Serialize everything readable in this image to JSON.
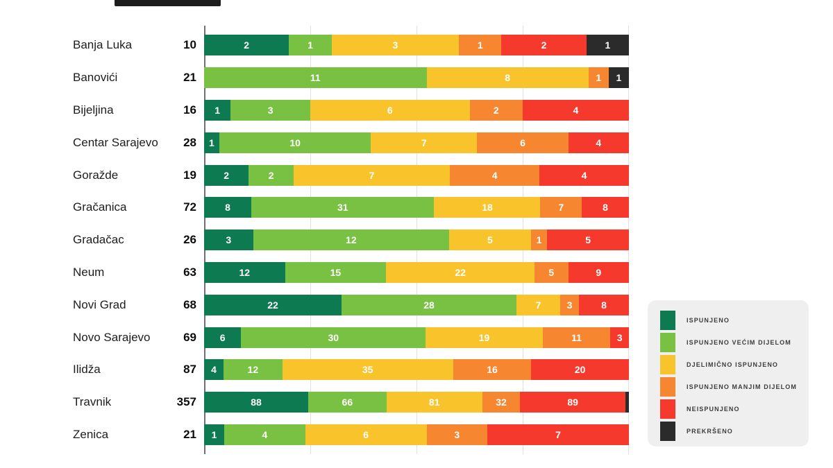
{
  "decor": {
    "top_strip_color": "#1d1d1d",
    "legend_background": "#efefef",
    "gridline_color": "#e0e0e0",
    "axis_line_color": "#707070"
  },
  "chart_data": {
    "type": "bar",
    "subtype": "horizontal-100%-stacked",
    "title": "",
    "xlabel": "",
    "ylabel": "",
    "legend_position": "right",
    "grid": true,
    "gridlines_percent": [
      0,
      25,
      50,
      75,
      100
    ],
    "series_labels": [
      "ISPUNJENO",
      "ISPUNJENO VEĆIM DIJELOM",
      "DJELIMIČNO ISPUNJENO",
      "ISPUNJENO MANJIM DIJELOM",
      "NEISPUNJENO",
      "PREKRŠENO"
    ],
    "series_keys": [
      "ispunjeno",
      "ispunjeno-vecim-dijelom",
      "djelimicno-ispunjeno",
      "ispunjeno-manjim-dijelom",
      "neispunjeno",
      "prekrseno"
    ],
    "series_colors": [
      "#0d7a52",
      "#79c142",
      "#f9c32b",
      "#f6862f",
      "#f53a2d",
      "#2b2b2b"
    ],
    "rows": [
      {
        "label": "Banja Luka",
        "total": 10,
        "values": [
          2,
          1,
          3,
          1,
          2,
          1
        ]
      },
      {
        "label": "Banovići",
        "total": 21,
        "values": [
          0,
          11,
          8,
          1,
          0,
          1
        ]
      },
      {
        "label": "Bijeljina",
        "total": 16,
        "values": [
          1,
          3,
          6,
          2,
          4,
          0
        ]
      },
      {
        "label": "Centar Sarajevo",
        "total": 28,
        "values": [
          1,
          10,
          7,
          6,
          4,
          0
        ]
      },
      {
        "label": "Goražde",
        "total": 19,
        "values": [
          2,
          2,
          7,
          4,
          4,
          0
        ]
      },
      {
        "label": "Gračanica",
        "total": 72,
        "values": [
          8,
          31,
          18,
          7,
          8,
          0
        ]
      },
      {
        "label": "Gradačac",
        "total": 26,
        "values": [
          3,
          12,
          5,
          1,
          5,
          0
        ]
      },
      {
        "label": "Neum",
        "total": 63,
        "values": [
          12,
          15,
          22,
          5,
          9,
          0
        ]
      },
      {
        "label": "Novi Grad",
        "total": 68,
        "values": [
          22,
          28,
          7,
          3,
          8,
          0
        ]
      },
      {
        "label": "Novo Sarajevo",
        "total": 69,
        "values": [
          6,
          30,
          19,
          11,
          3,
          0
        ]
      },
      {
        "label": "Ilidža",
        "total": 87,
        "values": [
          4,
          12,
          35,
          16,
          20,
          0
        ]
      },
      {
        "label": "Travnik",
        "total": 357,
        "values": [
          88,
          66,
          81,
          32,
          89,
          1
        ]
      },
      {
        "label": "Zenica",
        "total": 21,
        "values": [
          1,
          4,
          6,
          3,
          7,
          0
        ]
      }
    ]
  }
}
